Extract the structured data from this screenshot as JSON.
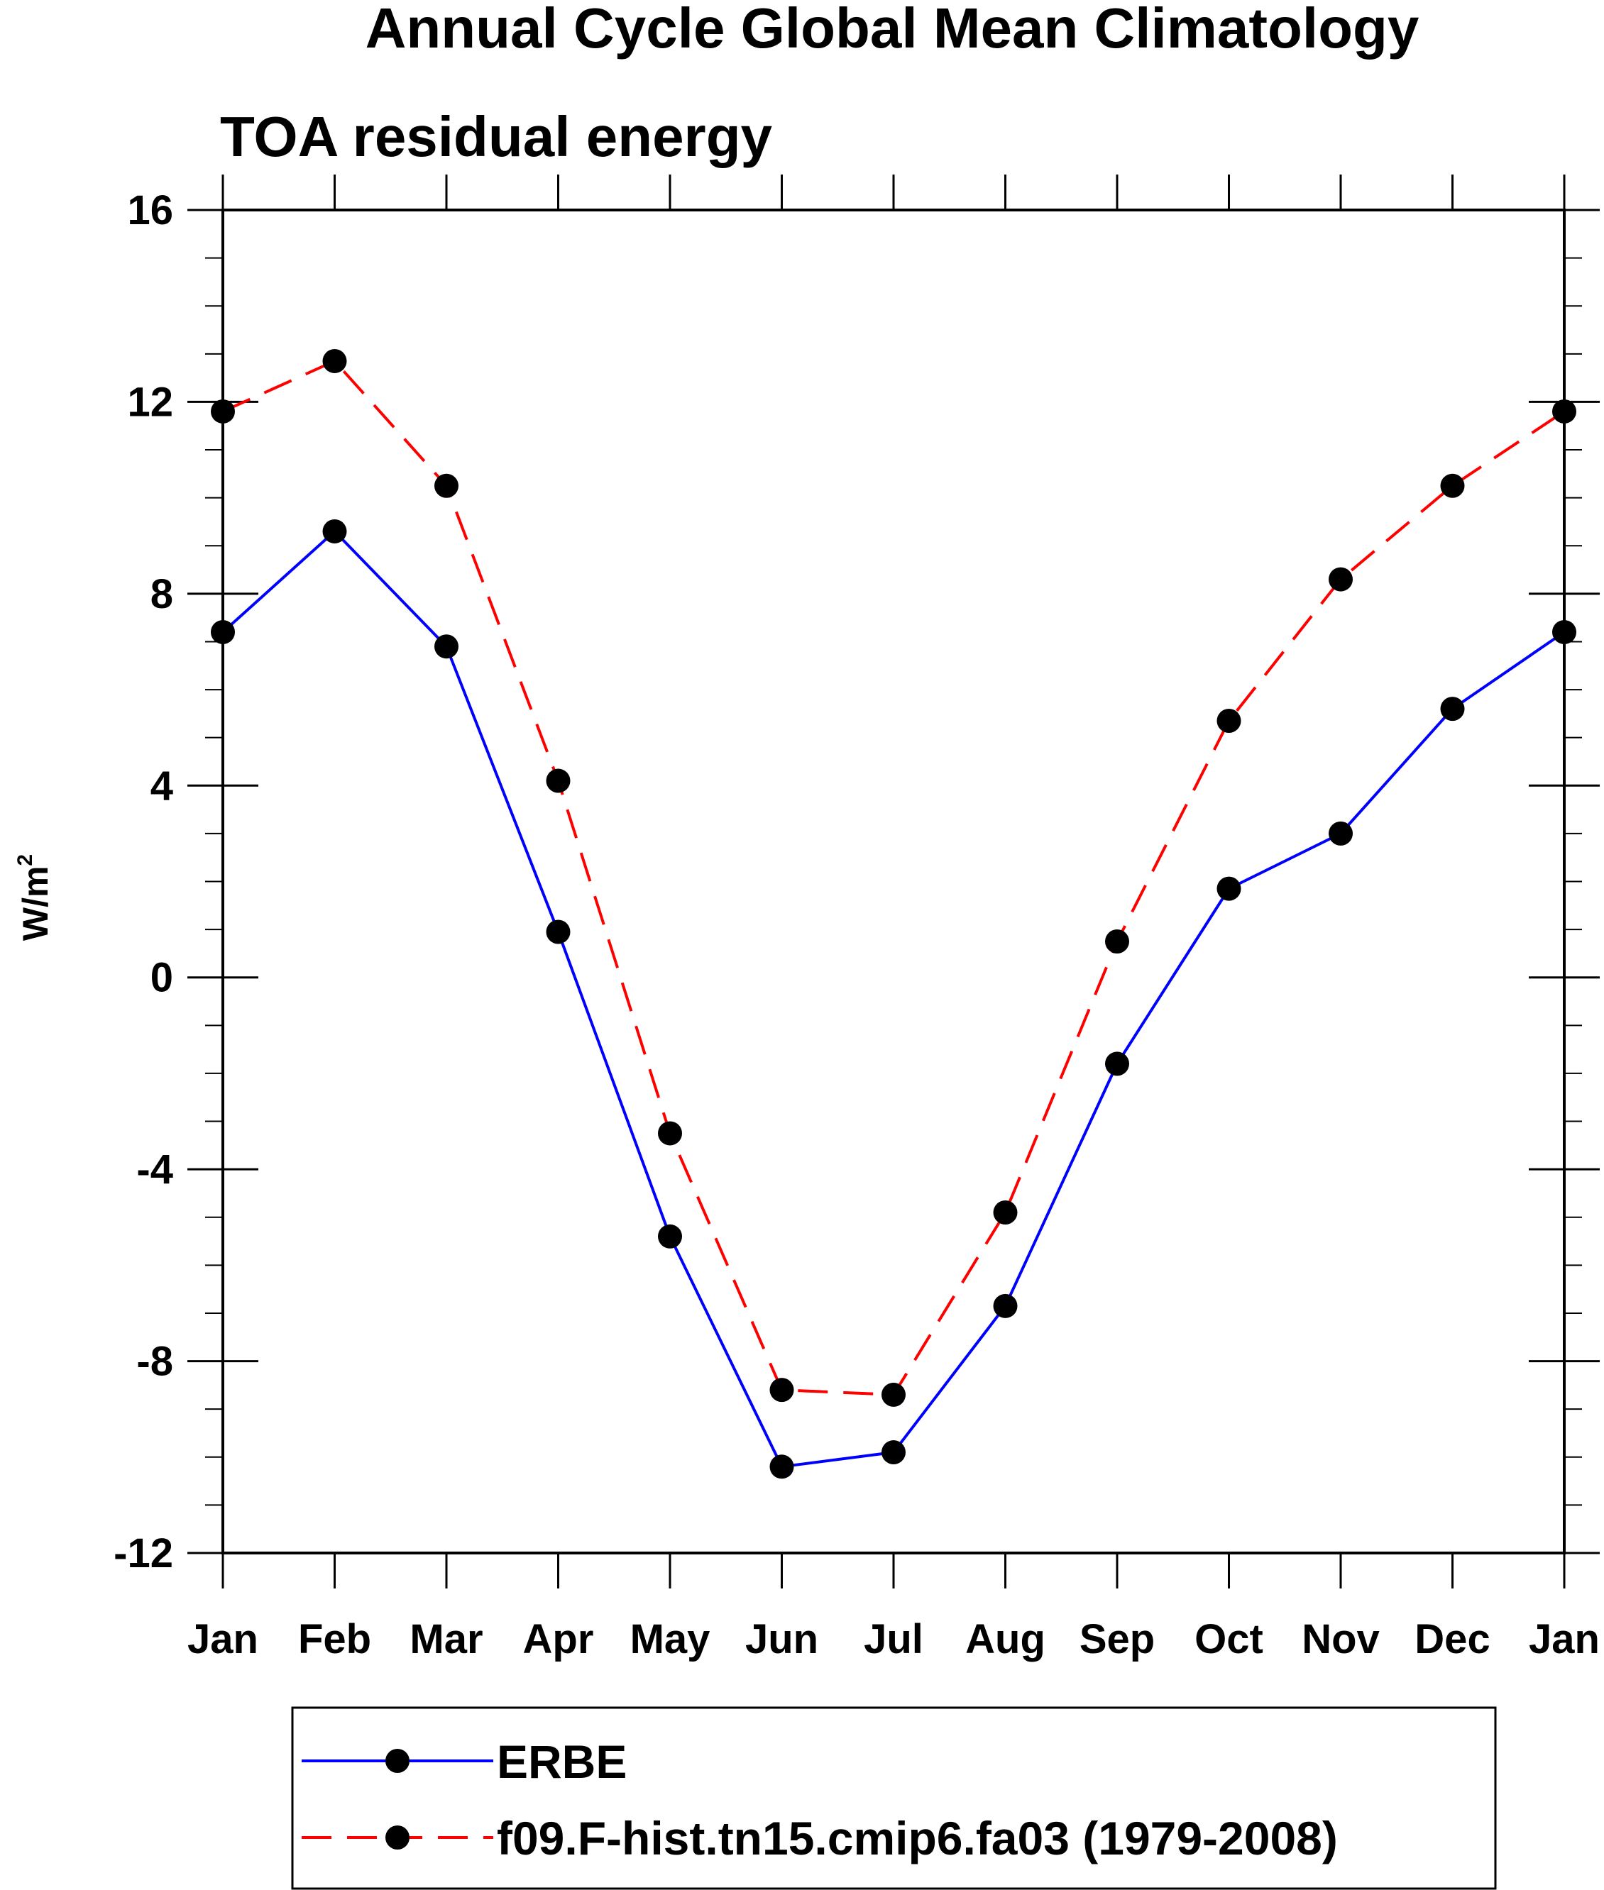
{
  "chart_data": {
    "type": "line",
    "title": "Annual Cycle Global Mean Climatology",
    "subtitle": "TOA residual energy",
    "xlabel": "",
    "ylabel_base": "W/m",
    "ylabel_sup": "2",
    "ylim": [
      -12,
      16
    ],
    "yticks_major": [
      -12,
      -8,
      -4,
      0,
      4,
      8,
      12,
      16
    ],
    "yticks_minor_step": 1,
    "categories": [
      "Jan",
      "Feb",
      "Mar",
      "Apr",
      "May",
      "Jun",
      "Jul",
      "Aug",
      "Sep",
      "Oct",
      "Nov",
      "Dec",
      "Jan"
    ],
    "series": [
      {
        "name": "ERBE",
        "color": "#0000ff",
        "dash": "solid",
        "values": [
          7.2,
          9.3,
          6.9,
          0.95,
          -5.4,
          -10.2,
          -9.9,
          -6.85,
          -1.8,
          1.85,
          3.0,
          5.6,
          7.2
        ]
      },
      {
        "name": "f09.F-hist.tn15.cmip6.fa03 (1979-2008)",
        "color": "#ff0000",
        "dash": "dashed",
        "values": [
          11.8,
          12.85,
          10.25,
          4.1,
          -3.25,
          -8.6,
          -8.7,
          -4.9,
          0.75,
          5.35,
          8.3,
          10.25,
          11.8
        ]
      }
    ],
    "marker": {
      "shape": "circle",
      "color": "#000000"
    },
    "legend": {
      "position": "bottom",
      "boxed": true
    }
  }
}
